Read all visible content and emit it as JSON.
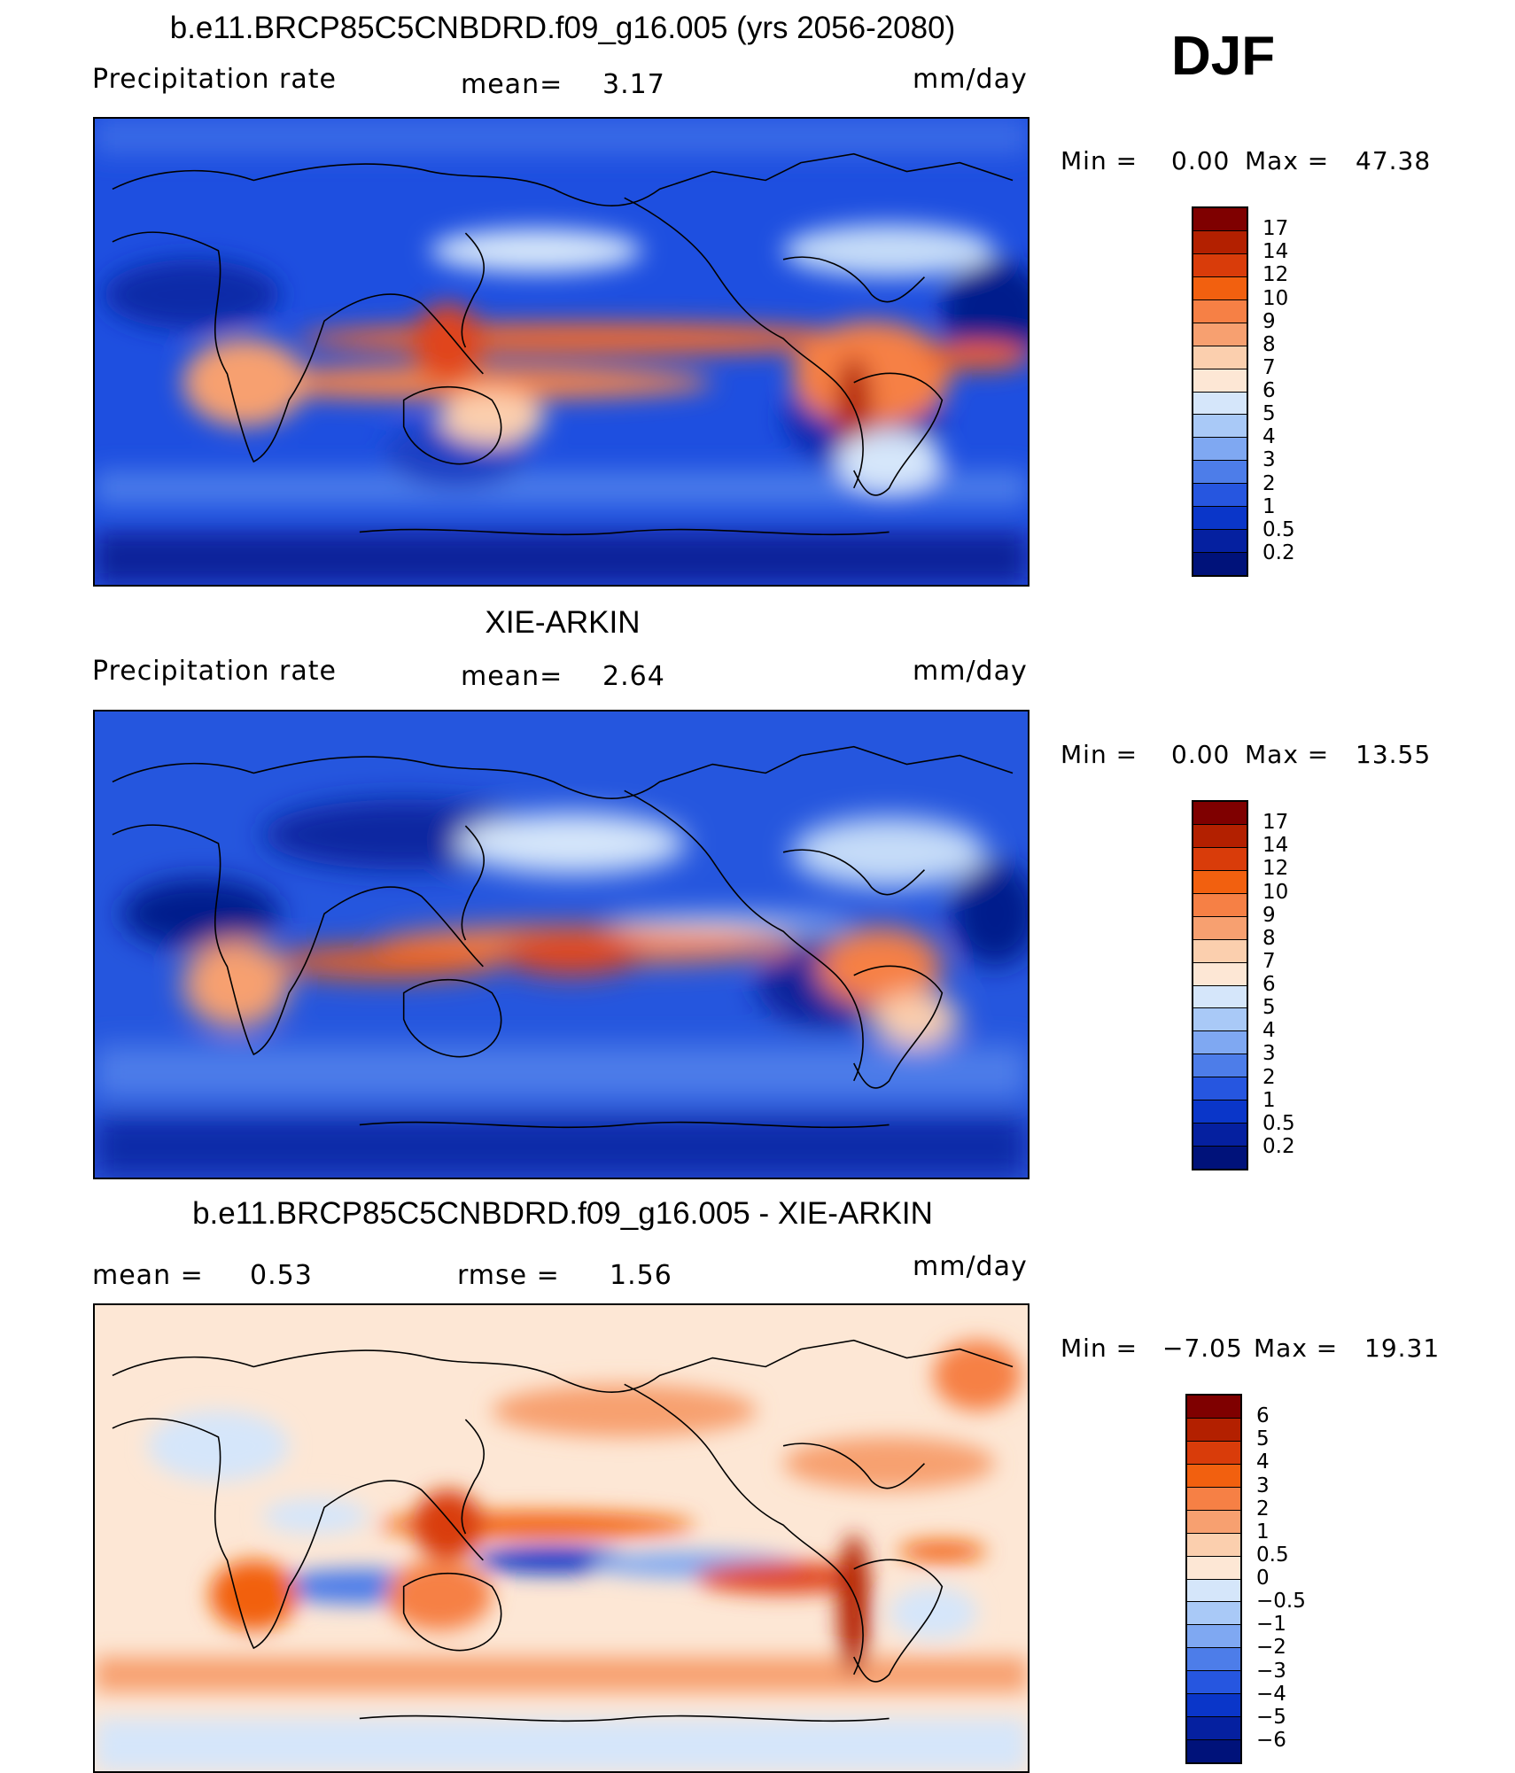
{
  "season": "DJF",
  "panels": [
    {
      "id": "model",
      "title": "b.e11.BRCP85C5CNBDRD.f09_g16.005 (yrs 2056-2080)",
      "left_label": "Precipitation  rate",
      "center_label": "mean=",
      "center_value": "3.17",
      "units": "mm/day",
      "min_label": "Min  =",
      "min_value": "0.00",
      "max_label": "Max  =",
      "max_value": "47.38",
      "colorbar_labels": [
        "17",
        "14",
        "12",
        "10",
        "9",
        "8",
        "7",
        "6",
        "5",
        "4",
        "3",
        "2",
        "1",
        "0.5",
        "0.2"
      ],
      "colorbar_colors": [
        "#7f0000",
        "#b32000",
        "#d93c0a",
        "#f2600f",
        "#f68045",
        "#f7a070",
        "#fbcfae",
        "#fde7d5",
        "#d5e6fa",
        "#a9c9f7",
        "#7fa8f2",
        "#4d7de9",
        "#2656e0",
        "#0a36c9",
        "#0520a0",
        "#00127a"
      ]
    },
    {
      "id": "obs",
      "title": "XIE-ARKIN",
      "left_label": "Precipitation  rate",
      "center_label": "mean=",
      "center_value": "2.64",
      "units": "mm/day",
      "min_label": "Min  =",
      "min_value": "0.00",
      "max_label": "Max  =",
      "max_value": "13.55",
      "colorbar_labels": [
        "17",
        "14",
        "12",
        "10",
        "9",
        "8",
        "7",
        "6",
        "5",
        "4",
        "3",
        "2",
        "1",
        "0.5",
        "0.2"
      ],
      "colorbar_colors": [
        "#7f0000",
        "#b32000",
        "#d93c0a",
        "#f2600f",
        "#f68045",
        "#f7a070",
        "#fbcfae",
        "#fde7d5",
        "#d5e6fa",
        "#a9c9f7",
        "#7fa8f2",
        "#4d7de9",
        "#2656e0",
        "#0a36c9",
        "#0520a0",
        "#00127a"
      ]
    },
    {
      "id": "diff",
      "title": "b.e11.BRCP85C5CNBDRD.f09_g16.005 - XIE-ARKIN",
      "left_label": "mean  =",
      "left_value": "0.53",
      "center_label": "rmse  =",
      "center_value": "1.56",
      "units": "mm/day",
      "min_label": "Min  =",
      "min_value": "−7.05",
      "max_label": "Max  =",
      "max_value": "19.31",
      "colorbar_labels": [
        "6",
        "5",
        "4",
        "3",
        "2",
        "1",
        "0.5",
        "0",
        "−0.5",
        "−1",
        "−2",
        "−3",
        "−4",
        "−5",
        "−6"
      ],
      "colorbar_colors": [
        "#7f0000",
        "#b32000",
        "#d93c0a",
        "#f2600f",
        "#f68045",
        "#f7a070",
        "#fbcfae",
        "#fde7d5",
        "#d5e6fa",
        "#a9c9f7",
        "#7fa8f2",
        "#4d7de9",
        "#2656e0",
        "#0a36c9",
        "#0520a0",
        "#00127a"
      ]
    }
  ]
}
